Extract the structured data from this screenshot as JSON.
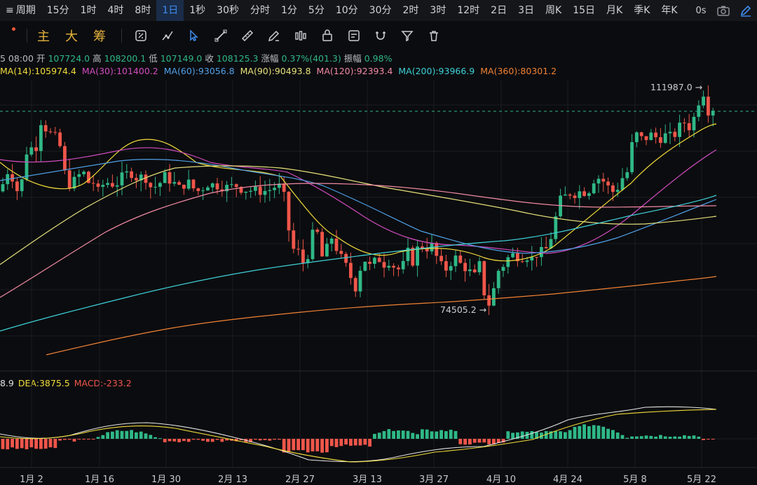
{
  "periods": [
    {
      "label": "周期",
      "active": false,
      "caret": true
    },
    {
      "label": "15分",
      "active": false
    },
    {
      "label": "1时",
      "active": false
    },
    {
      "label": "4时",
      "active": false
    },
    {
      "label": "8时",
      "active": false
    },
    {
      "label": "1日",
      "active": true
    },
    {
      "label": "1秒",
      "active": false
    },
    {
      "label": "30秒",
      "active": false
    },
    {
      "label": "分时",
      "active": false
    },
    {
      "label": "1分",
      "active": false
    },
    {
      "label": "5分",
      "active": false
    },
    {
      "label": "10分",
      "active": false
    },
    {
      "label": "30分",
      "active": false
    },
    {
      "label": "2时",
      "active": false
    },
    {
      "label": "3时",
      "active": false
    },
    {
      "label": "12时",
      "active": false
    },
    {
      "label": "2日",
      "active": false
    },
    {
      "label": "3日",
      "active": false
    },
    {
      "label": "周K",
      "active": false
    },
    {
      "label": "15日",
      "active": false
    },
    {
      "label": "月K",
      "active": false
    },
    {
      "label": "季K",
      "active": false
    },
    {
      "label": "年K",
      "active": false
    }
  ],
  "topright": {
    "delay": "0s"
  },
  "toolbar": {
    "text_buttons": [
      "主",
      "大",
      "筹"
    ],
    "icons": [
      "flip-icon",
      "measure-icon",
      "cursor-icon",
      "line-tool-icon",
      "ruler-icon",
      "pencil-icon",
      "candles-icon",
      "lock-icon",
      "notes-icon",
      "magnet-icon",
      "filter-icon",
      "trash-icon"
    ]
  },
  "ohlc": {
    "date": "5 08:00",
    "open_label": "开",
    "open": "107724.0",
    "high_label": "高",
    "high": "108200.1",
    "low_label": "低",
    "low": "107149.0",
    "close_label": "收",
    "close": "108125.3",
    "change_label": "涨幅",
    "change": "0.37%(401.3)",
    "amp_label": "振幅",
    "amp": "0.98%"
  },
  "ma": [
    {
      "label": "MA(14):105974.4",
      "color": "#f2dc3b"
    },
    {
      "label": "MA(30):101400.2",
      "color": "#d24cc0"
    },
    {
      "label": "MA(60):93056.8",
      "color": "#4fa0e6"
    },
    {
      "label": "MA(90):90493.8",
      "color": "#e6e07a"
    },
    {
      "label": "MA(120):92393.4",
      "color": "#f08aa4"
    },
    {
      "label": "MA(200):93966.9",
      "color": "#3ed0d8"
    },
    {
      "label": "MA(360):80301.2",
      "color": "#f08235"
    }
  ],
  "macd": [
    {
      "label": "8.9",
      "color": "#e0e0e0"
    },
    {
      "label": "DEA:3875.5",
      "color": "#f2dc3b"
    },
    {
      "label": "MACD:-233.2",
      "color": "#f0564a"
    }
  ],
  "annotations": {
    "high": "111987.0",
    "low": "74505.2"
  },
  "xaxis": [
    "1月 2",
    "1月 16",
    "1月 30",
    "2月 13",
    "2月 27",
    "3月 13",
    "3月 27",
    "4月 10",
    "4月 24",
    "5月 8",
    "5月 22"
  ],
  "colors": {
    "up": "#2fb887",
    "down": "#f0564a",
    "accent": "#3f8cf0"
  }
}
